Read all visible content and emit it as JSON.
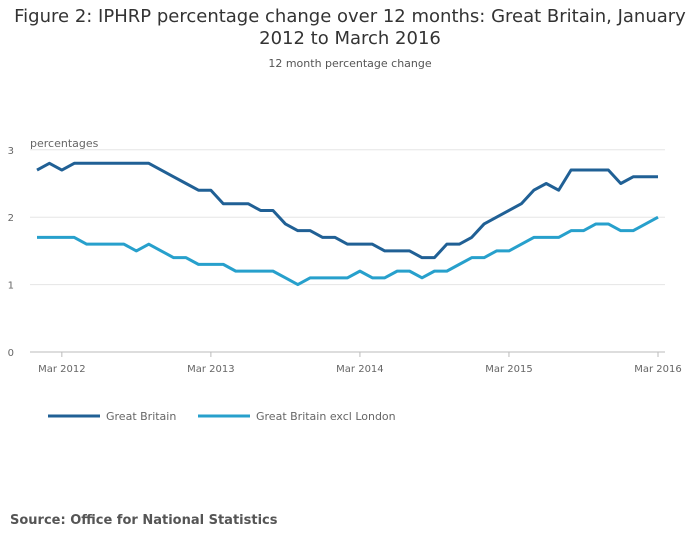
{
  "chart_data": {
    "type": "line",
    "title": "Figure 2: IPHRP percentage change over 12 months: Great Britain, January 2012 to March 2016",
    "subtitle": "12 month percentage change",
    "ylabel": "percentages",
    "ylim": [
      0,
      3
    ],
    "yticks": [
      "0",
      "1",
      "2",
      "3"
    ],
    "xticks": [
      {
        "label": "Mar 2012",
        "index": 2
      },
      {
        "label": "Mar 2013",
        "index": 14
      },
      {
        "label": "Mar 2014",
        "index": 26
      },
      {
        "label": "Mar 2015",
        "index": 38
      },
      {
        "label": "Mar 2016",
        "index": 50
      }
    ],
    "x_range": "Jan 2012 - Mar 2016 (monthly)",
    "legend_position": "bottom-left",
    "series": [
      {
        "name": "Great Britain",
        "color": "#206095",
        "values": [
          2.7,
          2.8,
          2.7,
          2.8,
          2.8,
          2.8,
          2.8,
          2.8,
          2.8,
          2.8,
          2.7,
          2.6,
          2.5,
          2.4,
          2.4,
          2.2,
          2.2,
          2.2,
          2.1,
          2.1,
          1.9,
          1.8,
          1.8,
          1.7,
          1.7,
          1.6,
          1.6,
          1.6,
          1.5,
          1.5,
          1.5,
          1.4,
          1.4,
          1.6,
          1.6,
          1.7,
          1.9,
          2.0,
          2.1,
          2.2,
          2.4,
          2.5,
          2.4,
          2.7,
          2.7,
          2.7,
          2.7,
          2.5,
          2.6,
          2.6,
          2.6
        ]
      },
      {
        "name": "Great Britain excl London",
        "color": "#27a0cc",
        "values": [
          1.7,
          1.7,
          1.7,
          1.7,
          1.6,
          1.6,
          1.6,
          1.6,
          1.5,
          1.6,
          1.5,
          1.4,
          1.4,
          1.3,
          1.3,
          1.3,
          1.2,
          1.2,
          1.2,
          1.2,
          1.1,
          1.0,
          1.1,
          1.1,
          1.1,
          1.1,
          1.2,
          1.1,
          1.1,
          1.2,
          1.2,
          1.1,
          1.2,
          1.2,
          1.3,
          1.4,
          1.4,
          1.5,
          1.5,
          1.6,
          1.7,
          1.7,
          1.7,
          1.8,
          1.8,
          1.9,
          1.9,
          1.8,
          1.8,
          1.9,
          2.0
        ]
      }
    ]
  },
  "source": "Source: Office for National Statistics"
}
